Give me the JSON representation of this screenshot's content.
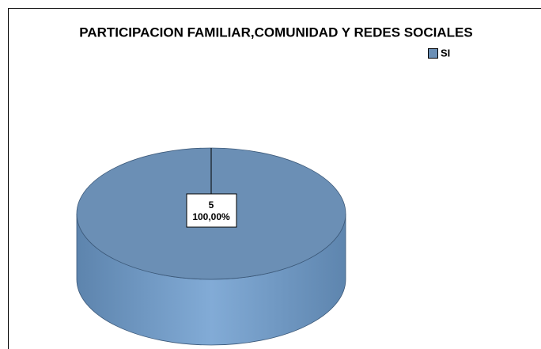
{
  "chart_data": {
    "type": "pie",
    "title": "PARTICIPACION FAMILIAR,COMUNIDAD Y REDES SOCIALES",
    "categories": [
      "SI"
    ],
    "values": [
      5
    ],
    "value_labels": [
      "5"
    ],
    "percentages": [
      100
    ],
    "percentage_labels": [
      "100,00%"
    ],
    "colors": [
      "#6b8fb5"
    ],
    "legend": "top-right"
  }
}
